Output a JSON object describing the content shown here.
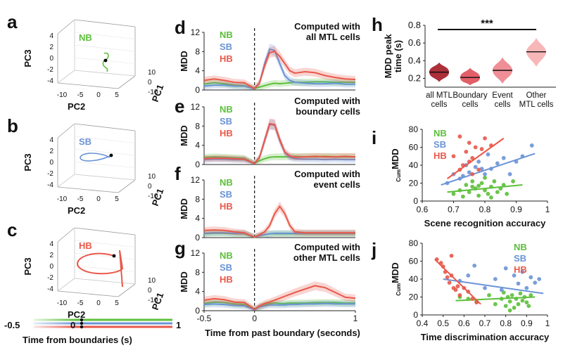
{
  "colors": {
    "NB": "#5cbf3a",
    "SB": "#6b93d6",
    "HB": "#e8584a",
    "dark": "#8b1a2a",
    "violin": [
      "#a8242f",
      "#e05560",
      "#ee8890",
      "#f7b3b5"
    ]
  },
  "panel_letters": {
    "a": "a",
    "b": "b",
    "c": "c",
    "d": "d",
    "e": "e",
    "f": "f",
    "g": "g",
    "h": "h",
    "i": "i",
    "j": "j"
  },
  "pca": {
    "axes": {
      "pc1": "PC1",
      "pc2": "PC2",
      "pc3": "PC3"
    },
    "pc3_ticks": [
      "4",
      "2",
      "0",
      "-2",
      "-4"
    ],
    "pc2_ticks": [
      "-10",
      "-5",
      "0",
      "5"
    ],
    "pc1_ticks": [
      "10",
      "0",
      "-10"
    ],
    "panels": [
      {
        "letter": "a",
        "label": "NB",
        "color_key": "NB"
      },
      {
        "letter": "b",
        "label": "SB",
        "color_key": "SB"
      },
      {
        "letter": "c",
        "label": "HB",
        "color_key": "HB"
      }
    ],
    "colorbar": {
      "start": "-0.5",
      "mid": "0",
      "end": "1",
      "caption": "Time from boundaries (s)"
    }
  },
  "chart_data": [
    {
      "panel": "d",
      "type": "line",
      "title": "Computed with\nall MTL cells",
      "ylabel": "MDD",
      "ylim": [
        0,
        12
      ],
      "yticks": [
        "0",
        "4",
        "8",
        "12"
      ],
      "x": [
        -0.5,
        -0.4,
        -0.3,
        -0.2,
        -0.1,
        0,
        0.05,
        0.1,
        0.15,
        0.2,
        0.25,
        0.3,
        0.35,
        0.4,
        0.5,
        0.6,
        0.7,
        0.8,
        0.9,
        1.0
      ],
      "series": [
        {
          "name": "NB",
          "values": [
            1.2,
            1.5,
            1.3,
            1.0,
            0.9,
            0.3,
            0.6,
            0.9,
            1.2,
            1.4,
            1.3,
            1.4,
            1.5,
            1.6,
            1.6,
            1.7,
            1.7,
            1.6,
            1.6,
            1.6
          ]
        },
        {
          "name": "SB",
          "values": [
            0.8,
            1.0,
            1.0,
            0.8,
            0.8,
            0.2,
            1.5,
            5.5,
            8.5,
            8.2,
            5.5,
            3.0,
            2.0,
            1.6,
            1.4,
            1.3,
            1.3,
            1.4,
            1.2,
            1.2
          ]
        },
        {
          "name": "HB",
          "values": [
            2.0,
            2.3,
            2.0,
            1.6,
            1.5,
            0.3,
            1.5,
            5.0,
            7.8,
            8.0,
            7.0,
            5.5,
            4.0,
            3.5,
            3.8,
            3.6,
            3.0,
            2.6,
            2.3,
            2.2
          ]
        }
      ]
    },
    {
      "panel": "e",
      "type": "line",
      "title": "Computed with\nboundary cells",
      "ylabel": "MDD",
      "ylim": [
        0,
        12
      ],
      "yticks": [
        "0",
        "4",
        "8",
        "12"
      ],
      "x": [
        -0.5,
        -0.4,
        -0.3,
        -0.2,
        -0.1,
        0,
        0.05,
        0.1,
        0.15,
        0.2,
        0.25,
        0.3,
        0.35,
        0.4,
        0.5,
        0.6,
        0.7,
        0.8,
        0.9,
        1.0
      ],
      "series": [
        {
          "name": "NB",
          "values": [
            1.5,
            1.6,
            1.5,
            1.4,
            1.3,
            0.2,
            0.8,
            1.2,
            1.5,
            1.6,
            1.6,
            1.6,
            1.6,
            1.7,
            1.6,
            1.6,
            1.7,
            1.6,
            1.6,
            1.6
          ]
        },
        {
          "name": "SB",
          "values": [
            1.0,
            1.1,
            1.1,
            1.0,
            1.0,
            0.2,
            1.5,
            5.0,
            8.3,
            8.2,
            5.0,
            2.5,
            1.5,
            1.2,
            1.1,
            1.1,
            1.0,
            1.1,
            1.0,
            1.0
          ]
        },
        {
          "name": "HB",
          "values": [
            1.2,
            1.3,
            1.3,
            1.2,
            1.1,
            0.2,
            1.5,
            5.0,
            8.5,
            8.3,
            5.2,
            2.6,
            1.8,
            1.5,
            1.6,
            1.7,
            1.6,
            1.6,
            1.7,
            1.6
          ]
        }
      ]
    },
    {
      "panel": "f",
      "type": "line",
      "title": "Computed with\nevent cells",
      "ylabel": "MDD",
      "ylim": [
        0,
        12
      ],
      "yticks": [
        "0",
        "4",
        "8",
        "12"
      ],
      "x": [
        -0.5,
        -0.4,
        -0.3,
        -0.2,
        -0.1,
        0,
        0.05,
        0.1,
        0.15,
        0.2,
        0.25,
        0.3,
        0.35,
        0.4,
        0.5,
        0.6,
        0.7,
        0.8,
        0.9,
        1.0
      ],
      "series": [
        {
          "name": "NB",
          "values": [
            0.8,
            0.9,
            0.9,
            0.8,
            0.8,
            0.1,
            0.4,
            0.6,
            0.8,
            0.8,
            0.8,
            0.8,
            0.8,
            0.8,
            0.8,
            0.8,
            0.8,
            0.8,
            0.8,
            0.8
          ]
        },
        {
          "name": "SB",
          "values": [
            0.9,
            1.0,
            1.0,
            0.9,
            0.9,
            0.1,
            0.4,
            0.6,
            0.8,
            0.9,
            0.9,
            0.9,
            0.9,
            0.9,
            0.9,
            0.9,
            0.9,
            0.9,
            0.9,
            0.9
          ]
        },
        {
          "name": "HB",
          "values": [
            1.5,
            1.6,
            1.5,
            1.2,
            1.0,
            0.1,
            0.6,
            1.2,
            2.5,
            5.0,
            6.5,
            5.0,
            2.5,
            1.2,
            1.0,
            1.0,
            1.0,
            1.0,
            1.0,
            1.0
          ]
        }
      ]
    },
    {
      "panel": "g",
      "type": "line",
      "title": "Computed with\nother MTL cells",
      "ylabel": "MDD",
      "ylim": [
        0,
        12
      ],
      "yticks": [
        "0",
        "4",
        "8",
        "12"
      ],
      "xlabel": "Time from past boundary (seconds)",
      "xticks": [
        "-0.5",
        "0",
        "1"
      ],
      "x": [
        -0.5,
        -0.4,
        -0.3,
        -0.2,
        -0.1,
        0,
        0.05,
        0.1,
        0.15,
        0.2,
        0.25,
        0.3,
        0.35,
        0.4,
        0.5,
        0.6,
        0.7,
        0.8,
        0.9,
        1.0
      ],
      "series": [
        {
          "name": "NB",
          "values": [
            1.5,
            1.8,
            1.7,
            1.4,
            1.3,
            0.2,
            0.8,
            1.2,
            1.5,
            1.6,
            1.5,
            1.5,
            1.6,
            1.6,
            1.6,
            1.7,
            1.7,
            1.7,
            1.6,
            1.6
          ]
        },
        {
          "name": "SB",
          "values": [
            1.3,
            1.4,
            1.3,
            1.1,
            1.0,
            0.2,
            0.8,
            1.0,
            1.2,
            1.2,
            1.2,
            1.2,
            1.3,
            1.3,
            1.4,
            1.4,
            1.5,
            1.4,
            1.4,
            1.4
          ]
        },
        {
          "name": "HB",
          "values": [
            2.2,
            2.5,
            2.3,
            1.8,
            1.7,
            0.3,
            1.0,
            1.5,
            1.8,
            2.2,
            2.6,
            3.0,
            3.4,
            3.8,
            4.5,
            5.2,
            4.8,
            3.8,
            2.8,
            2.6
          ]
        }
      ]
    },
    {
      "panel": "h",
      "type": "violin",
      "ylabel": "MDD peak\ntime (s)",
      "ylim": [
        0.1,
        0.8
      ],
      "yticks": [
        "0.2",
        "0.4",
        "0.6",
        "0.8"
      ],
      "categories": [
        "all MTL\ncells",
        "Boundary\ncells",
        "Event\ncells",
        "Other\nMTL cells"
      ],
      "medians": [
        0.27,
        0.21,
        0.29,
        0.5
      ],
      "ranges": [
        [
          0.16,
          0.38
        ],
        [
          0.12,
          0.32
        ],
        [
          0.14,
          0.44
        ],
        [
          0.33,
          0.66
        ]
      ],
      "annotation": "***"
    },
    {
      "panel": "i",
      "type": "scatter",
      "xlabel": "Scene recognition accuracy",
      "ylabel": "CumMDD",
      "xlim": [
        0.6,
        1.0
      ],
      "ylim": [
        0,
        80
      ],
      "xticks": [
        "0.6",
        "0.7",
        "0.8",
        "0.9",
        "1"
      ],
      "yticks": [
        "0",
        "20",
        "40",
        "60",
        "80"
      ],
      "series": [
        {
          "name": "NB",
          "points": [
            [
              0.7,
              8
            ],
            [
              0.72,
              12
            ],
            [
              0.73,
              5
            ],
            [
              0.74,
              18
            ],
            [
              0.75,
              10
            ],
            [
              0.76,
              22
            ],
            [
              0.77,
              14
            ],
            [
              0.78,
              6
            ],
            [
              0.78,
              17
            ],
            [
              0.79,
              20
            ],
            [
              0.8,
              12
            ],
            [
              0.8,
              26
            ],
            [
              0.81,
              8
            ],
            [
              0.82,
              16
            ],
            [
              0.83,
              22
            ],
            [
              0.84,
              10
            ],
            [
              0.85,
              14
            ],
            [
              0.86,
              18
            ],
            [
              0.87,
              8
            ],
            [
              0.89,
              22
            ],
            [
              0.82,
              4
            ],
            [
              0.76,
              16
            ]
          ],
          "fit": [
            [
              0.68,
              10
            ],
            [
              0.92,
              18
            ]
          ]
        },
        {
          "name": "SB",
          "points": [
            [
              0.68,
              20
            ],
            [
              0.7,
              30
            ],
            [
              0.72,
              25
            ],
            [
              0.74,
              40
            ],
            [
              0.75,
              32
            ],
            [
              0.77,
              38
            ],
            [
              0.78,
              44
            ],
            [
              0.8,
              30
            ],
            [
              0.81,
              52
            ],
            [
              0.82,
              36
            ],
            [
              0.84,
              42
            ],
            [
              0.86,
              48
            ],
            [
              0.88,
              30
            ],
            [
              0.9,
              44
            ],
            [
              0.92,
              50
            ],
            [
              0.95,
              62
            ],
            [
              0.73,
              28
            ],
            [
              0.79,
              36
            ]
          ],
          "fit": [
            [
              0.66,
              18
            ],
            [
              0.96,
              53
            ]
          ]
        },
        {
          "name": "HB",
          "points": [
            [
              0.7,
              50
            ],
            [
              0.72,
              72
            ],
            [
              0.73,
              40
            ],
            [
              0.74,
              55
            ],
            [
              0.75,
              65
            ],
            [
              0.76,
              48
            ],
            [
              0.77,
              60
            ],
            [
              0.78,
              35
            ],
            [
              0.79,
              58
            ],
            [
              0.8,
              70
            ],
            [
              0.72,
              35
            ],
            [
              0.76,
              30
            ],
            [
              0.82,
              62
            ],
            [
              0.75,
              44
            ]
          ],
          "fit": [
            [
              0.68,
              25
            ],
            [
              0.86,
              70
            ]
          ]
        }
      ]
    },
    {
      "panel": "j",
      "type": "scatter",
      "xlabel": "Time discrimination accuracy",
      "ylabel": "CumMDD",
      "xlim": [
        0.4,
        1.0
      ],
      "ylim": [
        0,
        80
      ],
      "xticks": [
        "0.4",
        "0.5",
        "0.6",
        "0.7",
        "0.8",
        "0.9",
        "1"
      ],
      "yticks": [
        "0",
        "20",
        "40",
        "60",
        "80"
      ],
      "series": [
        {
          "name": "NB",
          "points": [
            [
              0.58,
              20
            ],
            [
              0.62,
              18
            ],
            [
              0.66,
              15
            ],
            [
              0.72,
              22
            ],
            [
              0.75,
              12
            ],
            [
              0.78,
              18
            ],
            [
              0.79,
              25
            ],
            [
              0.8,
              10
            ],
            [
              0.81,
              20
            ],
            [
              0.82,
              15
            ],
            [
              0.83,
              22
            ],
            [
              0.84,
              8
            ],
            [
              0.85,
              18
            ],
            [
              0.86,
              12
            ],
            [
              0.87,
              24
            ],
            [
              0.88,
              16
            ],
            [
              0.89,
              20
            ],
            [
              0.9,
              14
            ],
            [
              0.91,
              10
            ],
            [
              0.92,
              22
            ],
            [
              0.82,
              5
            ]
          ],
          "fit": [
            [
              0.56,
              16
            ],
            [
              0.94,
              20
            ]
          ]
        },
        {
          "name": "SB",
          "points": [
            [
              0.58,
              38
            ],
            [
              0.62,
              44
            ],
            [
              0.7,
              30
            ],
            [
              0.75,
              40
            ],
            [
              0.78,
              28
            ],
            [
              0.8,
              52
            ],
            [
              0.84,
              44
            ],
            [
              0.86,
              35
            ],
            [
              0.88,
              48
            ],
            [
              0.9,
              30
            ],
            [
              0.92,
              42
            ],
            [
              0.94,
              36
            ],
            [
              0.96,
              40
            ],
            [
              0.65,
              55
            ]
          ],
          "fit": [
            [
              0.5,
              40
            ],
            [
              0.98,
              24
            ]
          ]
        },
        {
          "name": "HB",
          "points": [
            [
              0.47,
              62
            ],
            [
              0.49,
              58
            ],
            [
              0.5,
              54
            ],
            [
              0.51,
              48
            ],
            [
              0.52,
              42
            ],
            [
              0.53,
              36
            ],
            [
              0.54,
              66
            ],
            [
              0.55,
              30
            ],
            [
              0.56,
              28
            ],
            [
              0.57,
              32
            ],
            [
              0.58,
              22
            ],
            [
              0.6,
              30
            ],
            [
              0.62,
              26
            ],
            [
              0.64,
              18
            ],
            [
              0.54,
              44
            ],
            [
              0.66,
              14
            ]
          ],
          "fit": [
            [
              0.46,
              62
            ],
            [
              0.68,
              12
            ]
          ]
        }
      ]
    }
  ]
}
